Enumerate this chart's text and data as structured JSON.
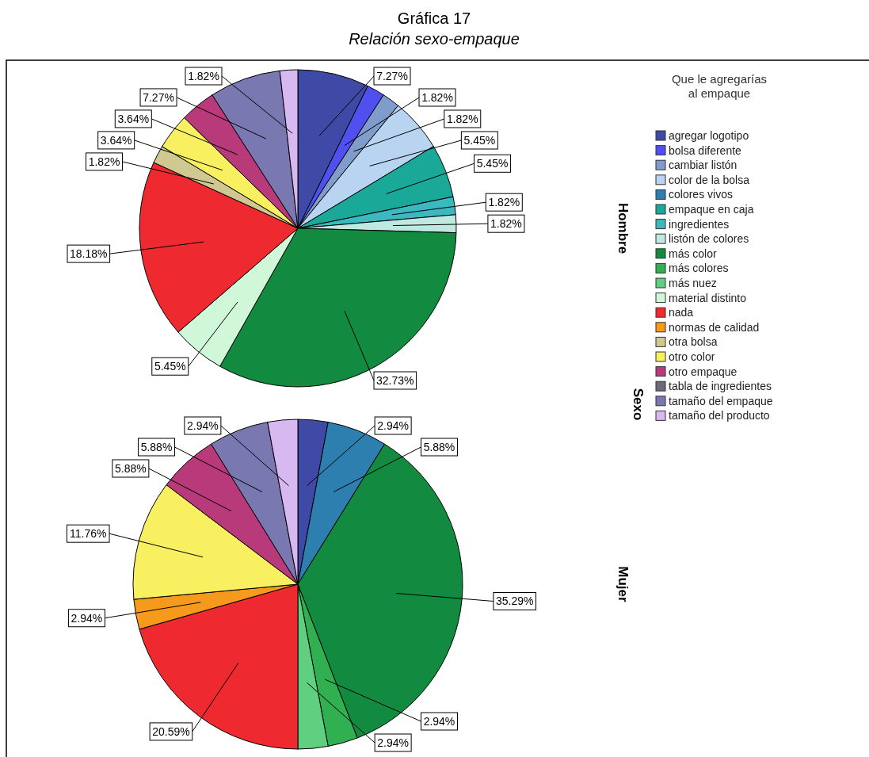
{
  "chart_data": {
    "type": "pie",
    "title": "Gráfica 17",
    "subtitle": "Relación sexo-empaque",
    "ylabel": "Sexo",
    "legend_title": "Que le agregarías al empaque",
    "legend": "right",
    "categories": [
      "agregar logotipo",
      "bolsa diferente",
      "cambiar listón",
      "color de la bolsa",
      "colores vivos",
      "empaque en caja",
      "ingredientes",
      "listón de colores",
      "más color",
      "más colores",
      "más nuez",
      "material distinto",
      "nada",
      "normas de calidad",
      "otra bolsa",
      "otro color",
      "otro empaque",
      "tabla de ingredientes",
      "tamaño del empaque",
      "tamaño del producto"
    ],
    "colors": [
      "#3e4aa6",
      "#5050f0",
      "#7f9ccb",
      "#b8d4f0",
      "#2d7fb0",
      "#1aa898",
      "#3cb8c0",
      "#bfe8e0",
      "#128a40",
      "#30b050",
      "#60d080",
      "#d0f8d8",
      "#ee2a30",
      "#f59a1a",
      "#cfc890",
      "#f8f060",
      "#b83a7a",
      "#6a6a78",
      "#7a78b0",
      "#d8b8f0"
    ],
    "series": [
      {
        "name": "Hombre",
        "values": [
          7.27,
          1.82,
          1.82,
          5.45,
          null,
          5.45,
          1.82,
          1.82,
          32.73,
          null,
          null,
          5.45,
          18.18,
          null,
          1.82,
          3.64,
          3.64,
          null,
          7.27,
          1.82
        ],
        "value_labels": [
          "7.27%",
          "1.82%",
          "1.82%",
          "5.45%",
          null,
          "5.45%",
          "1.82%",
          "1.82%",
          "32.73%",
          null,
          null,
          "5.45%",
          "18.18%",
          null,
          "1.82%",
          "3.64%",
          "3.64%",
          null,
          "7.27%",
          "1.82%"
        ]
      },
      {
        "name": "Mujer",
        "values": [
          2.94,
          null,
          null,
          null,
          5.88,
          null,
          null,
          null,
          35.29,
          2.94,
          2.94,
          null,
          20.59,
          2.94,
          null,
          11.76,
          5.88,
          null,
          5.88,
          2.94
        ],
        "value_labels": [
          "2.94%",
          null,
          null,
          null,
          "5.88%",
          null,
          null,
          null,
          "35.29%",
          "2.94%",
          "2.94%",
          null,
          "20.59%",
          "2.94%",
          null,
          "11.76%",
          "5.88%",
          null,
          "5.88%",
          "2.94%"
        ]
      }
    ]
  }
}
